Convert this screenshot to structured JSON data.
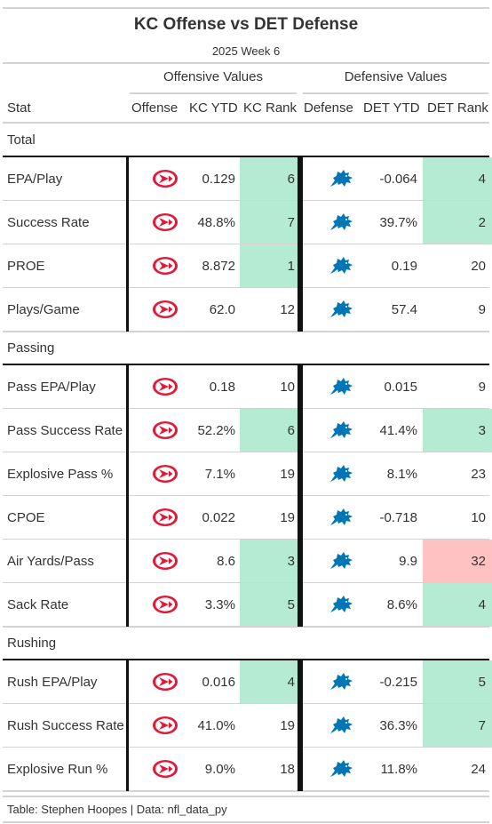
{
  "title": "KC Offense vs DET Defense",
  "subtitle": "2025 Week 6",
  "spanners": {
    "offense": "Offensive Values",
    "defense": "Defensive Values"
  },
  "columns": {
    "stat": "Stat",
    "offense": "Offense",
    "kc_ytd": "KC YTD",
    "kc_rank": "KC Rank",
    "defense": "Defense",
    "det_ytd": "DET YTD",
    "det_rank": "DET Rank"
  },
  "logos": {
    "offense": "kansas-city-chiefs-logo",
    "defense": "detroit-lions-logo"
  },
  "colors": {
    "good_rank": "#b5ebd3",
    "bad_rank": "#ffc2c2",
    "rule": "#111111",
    "chiefs_red": "#e31837",
    "lions_blue": "#0076b6"
  },
  "groups": [
    {
      "label": "Total",
      "rows": [
        {
          "stat": "EPA/Play",
          "kc_ytd": "0.129",
          "kc_rank": "6",
          "kc_rank_highlight": "good",
          "det_ytd": "-0.064",
          "det_rank": "4",
          "det_rank_highlight": "good"
        },
        {
          "stat": "Success Rate",
          "kc_ytd": "48.8%",
          "kc_rank": "7",
          "kc_rank_highlight": "good",
          "det_ytd": "39.7%",
          "det_rank": "2",
          "det_rank_highlight": "good"
        },
        {
          "stat": "PROE",
          "kc_ytd": "8.872",
          "kc_rank": "1",
          "kc_rank_highlight": "good",
          "det_ytd": "0.19",
          "det_rank": "20",
          "det_rank_highlight": "none"
        },
        {
          "stat": "Plays/Game",
          "kc_ytd": "62.0",
          "kc_rank": "12",
          "kc_rank_highlight": "none",
          "det_ytd": "57.4",
          "det_rank": "9",
          "det_rank_highlight": "none"
        }
      ]
    },
    {
      "label": "Passing",
      "rows": [
        {
          "stat": "Pass EPA/Play",
          "kc_ytd": "0.18",
          "kc_rank": "10",
          "kc_rank_highlight": "none",
          "det_ytd": "0.015",
          "det_rank": "9",
          "det_rank_highlight": "none"
        },
        {
          "stat": "Pass Success Rate",
          "kc_ytd": "52.2%",
          "kc_rank": "6",
          "kc_rank_highlight": "good",
          "det_ytd": "41.4%",
          "det_rank": "3",
          "det_rank_highlight": "good"
        },
        {
          "stat": "Explosive Pass %",
          "kc_ytd": "7.1%",
          "kc_rank": "19",
          "kc_rank_highlight": "none",
          "det_ytd": "8.1%",
          "det_rank": "23",
          "det_rank_highlight": "none"
        },
        {
          "stat": "CPOE",
          "kc_ytd": "0.022",
          "kc_rank": "19",
          "kc_rank_highlight": "none",
          "det_ytd": "-0.718",
          "det_rank": "10",
          "det_rank_highlight": "none"
        },
        {
          "stat": "Air Yards/Pass",
          "kc_ytd": "8.6",
          "kc_rank": "3",
          "kc_rank_highlight": "good",
          "det_ytd": "9.9",
          "det_rank": "32",
          "det_rank_highlight": "bad"
        },
        {
          "stat": "Sack Rate",
          "kc_ytd": "3.3%",
          "kc_rank": "5",
          "kc_rank_highlight": "good",
          "det_ytd": "8.6%",
          "det_rank": "4",
          "det_rank_highlight": "good"
        }
      ]
    },
    {
      "label": "Rushing",
      "rows": [
        {
          "stat": "Rush EPA/Play",
          "kc_ytd": "0.016",
          "kc_rank": "4",
          "kc_rank_highlight": "good",
          "det_ytd": "-0.215",
          "det_rank": "5",
          "det_rank_highlight": "good"
        },
        {
          "stat": "Rush Success Rate",
          "kc_ytd": "41.0%",
          "kc_rank": "19",
          "kc_rank_highlight": "none",
          "det_ytd": "36.3%",
          "det_rank": "7",
          "det_rank_highlight": "good"
        },
        {
          "stat": "Explosive Run %",
          "kc_ytd": "9.0%",
          "kc_rank": "18",
          "kc_rank_highlight": "none",
          "det_ytd": "11.8%",
          "det_rank": "24",
          "det_rank_highlight": "none"
        }
      ]
    }
  ],
  "footer": "Table: Stephen Hoopes | Data: nfl_data_py"
}
